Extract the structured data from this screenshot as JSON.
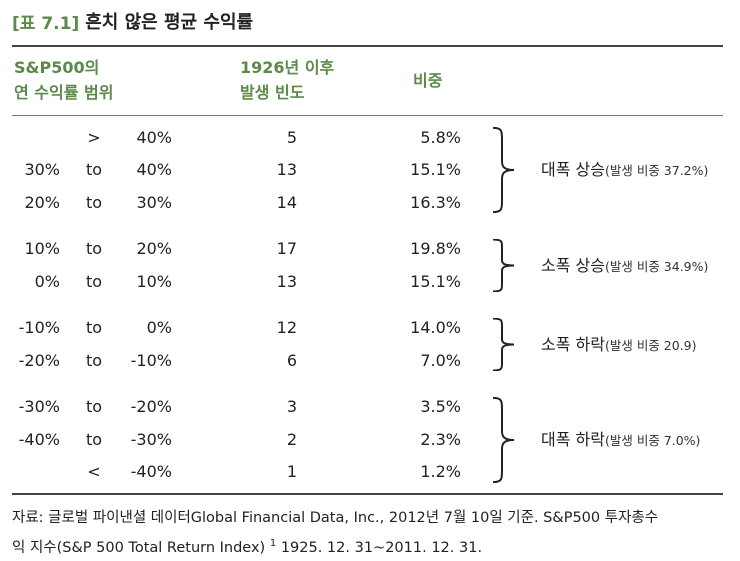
{
  "title": {
    "tag": "[표 7.1]",
    "text": "흔치 않은 평균 수익률"
  },
  "headers": {
    "range_line1": "S&P500의",
    "range_line2": "연 수익률 범위",
    "freq_line1": "1926년 이후",
    "freq_line2": "발생 빈도",
    "ratio": "비중"
  },
  "rows": [
    {
      "from": "",
      "op": ">",
      "to": "40%",
      "count": "5",
      "pct": "5.8%"
    },
    {
      "from": "30%",
      "op": "to",
      "to": "40%",
      "count": "13",
      "pct": "15.1%"
    },
    {
      "from": "20%",
      "op": "to",
      "to": "30%",
      "count": "14",
      "pct": "16.3%"
    },
    {
      "from": "10%",
      "op": "to",
      "to": "20%",
      "count": "17",
      "pct": "19.8%"
    },
    {
      "from": "0%",
      "op": "to",
      "to": "10%",
      "count": "13",
      "pct": "15.1%"
    },
    {
      "from": "-10%",
      "op": "to",
      "to": "0%",
      "count": "12",
      "pct": "14.0%"
    },
    {
      "from": "-20%",
      "op": "to",
      "to": "-10%",
      "count": "6",
      "pct": "7.0%"
    },
    {
      "from": "-30%",
      "op": "to",
      "to": "-20%",
      "count": "3",
      "pct": "3.5%"
    },
    {
      "from": "-40%",
      "op": "to",
      "to": "-30%",
      "count": "2",
      "pct": "2.3%"
    },
    {
      "from": "",
      "op": "<",
      "to": "-40%",
      "count": "1",
      "pct": "1.2%"
    }
  ],
  "groups": [
    {
      "main": "대폭 상승",
      "sub": "(발생 비중 37.2%)"
    },
    {
      "main": "소폭 상승",
      "sub": "(발생 비중 34.9%)"
    },
    {
      "main": "소폭 하락",
      "sub": "(발생 비중 20.9)"
    },
    {
      "main": "대폭 하락",
      "sub": "(발생 비중 7.0%)"
    }
  ],
  "footnote": {
    "line1": "자료: 글로벌 파이낸셜 데이터Global Financial Data, Inc., 2012년 7월 10일 기준. S&P500 투자총수",
    "line2_pre": "익 지수(S&P 500 Total Return Index)",
    "line2_mark": "1",
    "line2_post": "1925. 12. 31~2011. 12. 31."
  }
}
